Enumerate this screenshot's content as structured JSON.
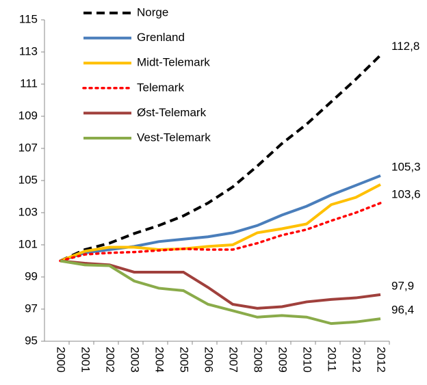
{
  "chart_data": {
    "type": "line",
    "categories": [
      "2000",
      "2001",
      "2002",
      "2003",
      "2004",
      "2005",
      "2006",
      "2007",
      "2008",
      "2009",
      "2010",
      "2011",
      "2012",
      "2012"
    ],
    "series": [
      {
        "name": "Norge",
        "color": "#000000",
        "dash": "dashed",
        "values": [
          100,
          100.7,
          101.1,
          101.7,
          102.2,
          102.8,
          103.6,
          104.6,
          105.9,
          107.3,
          108.5,
          109.9,
          111.3,
          112.8
        ],
        "value_labels": [
          null,
          null,
          null,
          null,
          null,
          null,
          null,
          null,
          null,
          null,
          null,
          null,
          null,
          "112,8"
        ]
      },
      {
        "name": "Grenland",
        "color": "#4a7ebb",
        "dash": "solid",
        "values": [
          100,
          100.5,
          100.7,
          100.9,
          101.2,
          101.35,
          101.5,
          101.75,
          102.2,
          102.85,
          103.4,
          104.1,
          104.7,
          105.3
        ],
        "value_labels": [
          null,
          null,
          null,
          null,
          null,
          null,
          null,
          null,
          null,
          null,
          null,
          null,
          null,
          "105,3"
        ]
      },
      {
        "name": "Midt-Telemark",
        "color": "#ffc000",
        "dash": "solid",
        "values": [
          100,
          100.6,
          100.85,
          100.85,
          100.7,
          100.75,
          100.9,
          101.0,
          101.75,
          102.0,
          102.3,
          103.5,
          103.95,
          104.75
        ]
      },
      {
        "name": "Telemark",
        "color": "#ff0000",
        "dash": "dotted",
        "values": [
          100,
          100.4,
          100.5,
          100.55,
          100.65,
          100.75,
          100.7,
          100.7,
          101.1,
          101.6,
          101.95,
          102.5,
          103.0,
          103.6
        ],
        "value_labels": [
          null,
          null,
          null,
          null,
          null,
          null,
          null,
          null,
          null,
          null,
          null,
          null,
          null,
          "103,6"
        ]
      },
      {
        "name": "Øst-Telemark",
        "color": "#a0403c",
        "dash": "solid",
        "values": [
          100,
          99.85,
          99.75,
          99.3,
          99.3,
          99.3,
          98.35,
          97.3,
          97.05,
          97.15,
          97.45,
          97.6,
          97.7,
          97.9
        ],
        "value_labels": [
          null,
          null,
          null,
          null,
          null,
          null,
          null,
          null,
          null,
          null,
          null,
          null,
          null,
          "97,9"
        ]
      },
      {
        "name": "Vest-Telemark",
        "color": "#8aab4a",
        "dash": "solid",
        "values": [
          100,
          99.75,
          99.7,
          98.75,
          98.3,
          98.15,
          97.3,
          96.9,
          96.5,
          96.6,
          96.5,
          96.1,
          96.2,
          96.4
        ],
        "value_labels": [
          null,
          null,
          null,
          null,
          null,
          null,
          null,
          null,
          null,
          null,
          null,
          null,
          null,
          "96,4"
        ]
      }
    ],
    "ylim": [
      95,
      115
    ],
    "yticks": [
      95,
      97,
      99,
      101,
      103,
      105,
      107,
      109,
      111,
      113,
      115
    ],
    "legend": "top-left",
    "grid": false
  }
}
